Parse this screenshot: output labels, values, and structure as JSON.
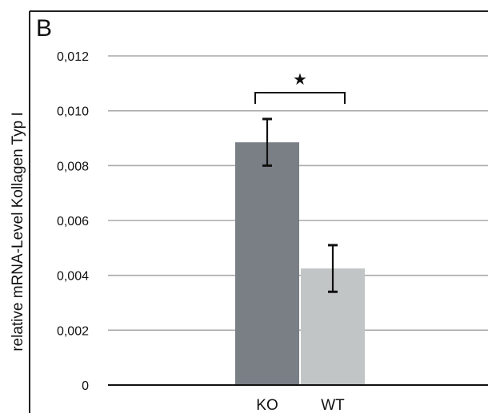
{
  "panel_label": "B",
  "chart_data": {
    "type": "bar",
    "title": "",
    "xlabel": "",
    "ylabel": "relative mRNA-Level Kollagen Typ I",
    "categories": [
      "KO",
      "WT"
    ],
    "values": [
      0.00885,
      0.00425
    ],
    "error": [
      0.00085,
      0.00085
    ],
    "colors": [
      "#7a7f86",
      "#c1c5c5"
    ],
    "ylim": [
      0,
      0.012
    ],
    "yticks": [
      0,
      0.002,
      0.004,
      0.006,
      0.008,
      0.01,
      0.012
    ],
    "ytick_labels": [
      "0",
      "0,002",
      "0,004",
      "0,006",
      "0,008",
      "0,010",
      "0,012"
    ],
    "grid": true,
    "significance": {
      "between": [
        "KO",
        "WT"
      ],
      "marker": "★"
    }
  }
}
